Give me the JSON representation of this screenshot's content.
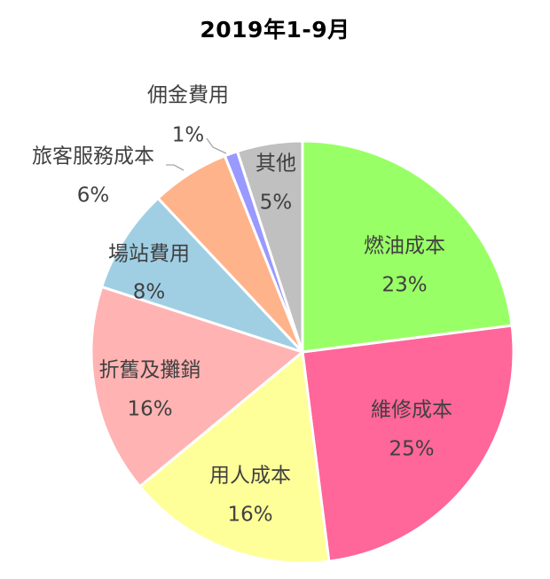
{
  "chart_data": {
    "type": "pie",
    "title": "2019年1-9月",
    "start_angle_deg": 0,
    "direction": "clockwise",
    "slices": [
      {
        "label": "燃油成本",
        "value": 23,
        "pct_label": "23%",
        "color": "#99ff66"
      },
      {
        "label": "維修成本",
        "value": 25,
        "pct_label": "25%",
        "color": "#ff6699"
      },
      {
        "label": "用人成本",
        "value": 16,
        "pct_label": "16%",
        "color": "#ffff99"
      },
      {
        "label": "折舊及攤銷",
        "value": 16,
        "pct_label": "16%",
        "color": "#ffb3b3"
      },
      {
        "label": "場站費用",
        "value": 8,
        "pct_label": "8%",
        "color": "#a0cfe4"
      },
      {
        "label": "旅客服務成本",
        "value": 6,
        "pct_label": "6%",
        "color": "#ffb38a"
      },
      {
        "label": "佣金費用",
        "value": 1,
        "pct_label": "1%",
        "color": "#9999ff"
      },
      {
        "label": "其他",
        "value": 5,
        "pct_label": "5%",
        "color": "#c0c0c0"
      }
    ],
    "edge_color": "#ffffff",
    "label_color": "#404040",
    "leader_color": "#a6a6a6"
  }
}
